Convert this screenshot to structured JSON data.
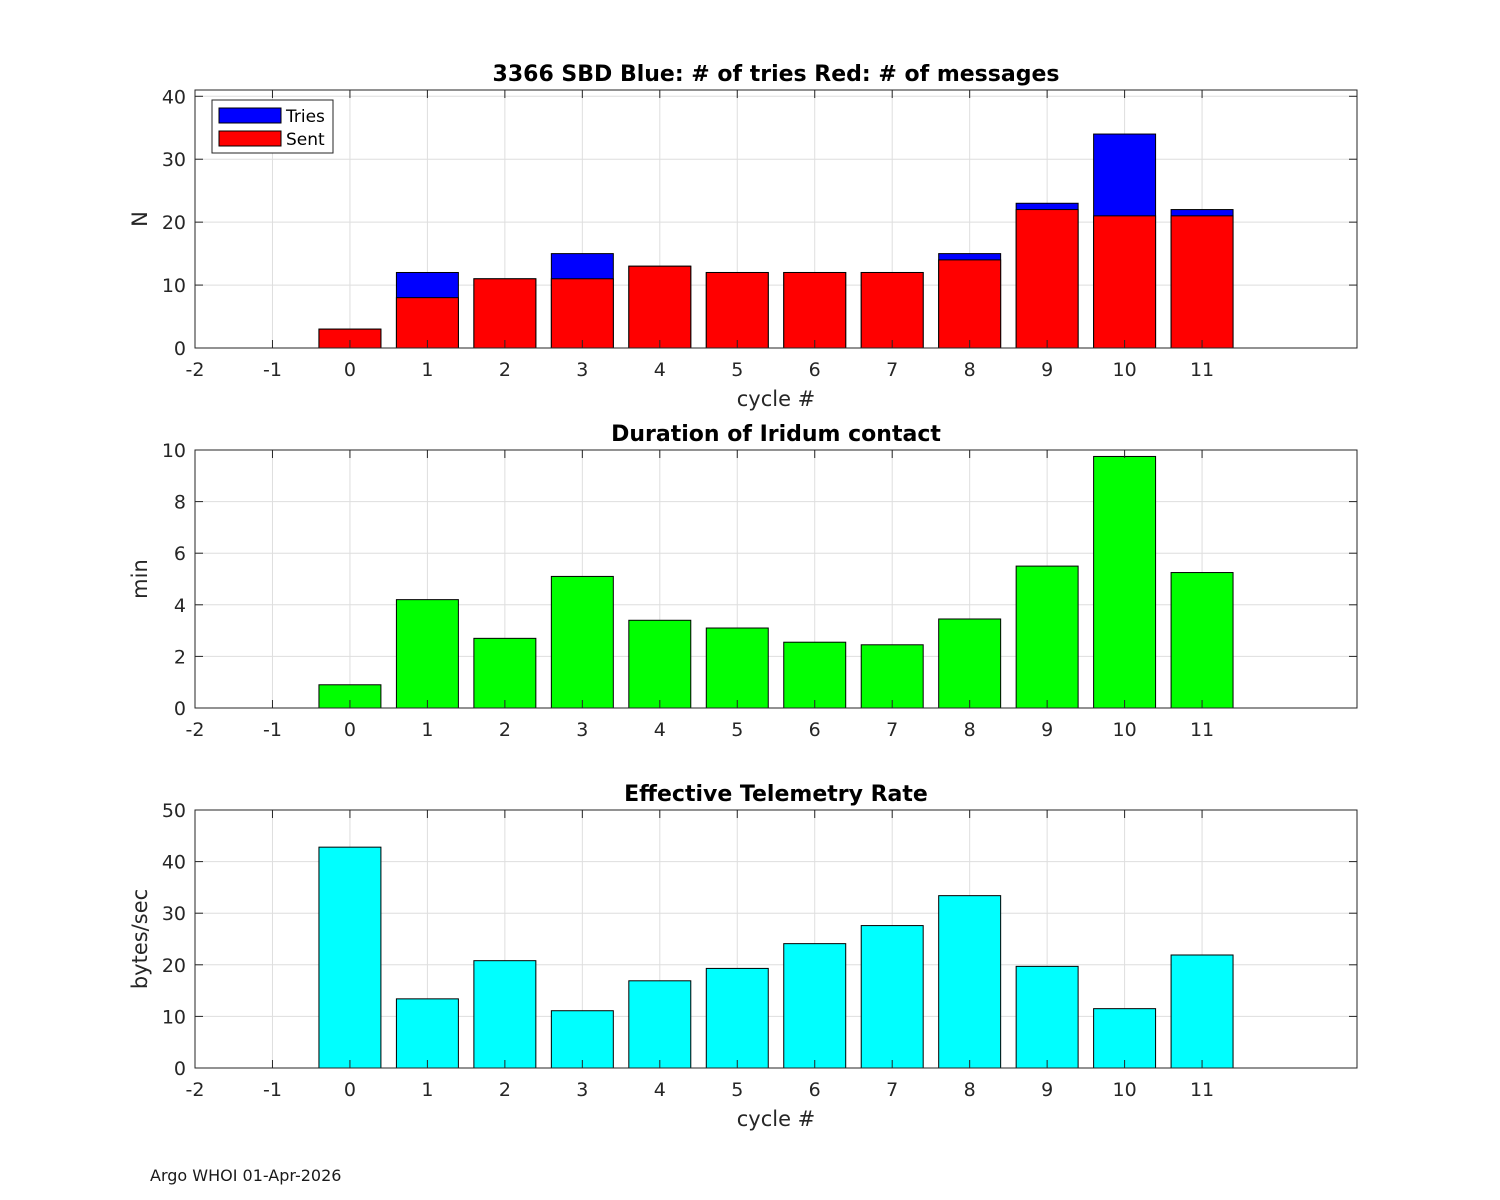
{
  "footer": "Argo WHOI 01-Apr-2026",
  "chart_data": [
    {
      "type": "bar",
      "stacked_overlay": true,
      "title": "3366 SBD  Blue: # of tries   Red: # of messages",
      "xlabel": "cycle #",
      "ylabel": "N",
      "x": [
        0,
        1,
        2,
        3,
        4,
        5,
        6,
        7,
        8,
        9,
        10,
        11
      ],
      "xlim": [
        -2,
        13
      ],
      "xticks": [
        "-2",
        "-1",
        "0",
        "1",
        "2",
        "3",
        "4",
        "5",
        "6",
        "7",
        "8",
        "9",
        "10",
        "11"
      ],
      "ylim": [
        0,
        41
      ],
      "yticks": [
        "0",
        "10",
        "20",
        "30",
        "40"
      ],
      "grid": true,
      "legend_position": "top-left",
      "series": [
        {
          "name": "Tries",
          "color": "#0000ff",
          "values": [
            3,
            12,
            11,
            15,
            13,
            12,
            12,
            12,
            15,
            23,
            34,
            22
          ]
        },
        {
          "name": "Sent",
          "color": "#ff0000",
          "values": [
            3,
            8,
            11,
            11,
            13,
            12,
            12,
            12,
            14,
            22,
            21,
            21
          ]
        }
      ]
    },
    {
      "type": "bar",
      "title": "Duration of Iridum contact",
      "xlabel": "",
      "ylabel": "min",
      "x": [
        0,
        1,
        2,
        3,
        4,
        5,
        6,
        7,
        8,
        9,
        10,
        11
      ],
      "xlim": [
        -2,
        13
      ],
      "xticks": [
        "-2",
        "-1",
        "0",
        "1",
        "2",
        "3",
        "4",
        "5",
        "6",
        "7",
        "8",
        "9",
        "10",
        "11"
      ],
      "ylim": [
        0,
        10
      ],
      "yticks": [
        "0",
        "2",
        "4",
        "6",
        "8",
        "10"
      ],
      "grid": true,
      "color": "#00ff00",
      "values": [
        0.9,
        4.2,
        2.7,
        5.1,
        3.4,
        3.1,
        2.55,
        2.45,
        3.45,
        5.5,
        9.75,
        5.25
      ]
    },
    {
      "type": "bar",
      "title": "Effective Telemetry Rate",
      "xlabel": "cycle #",
      "ylabel": "bytes/sec",
      "x": [
        0,
        1,
        2,
        3,
        4,
        5,
        6,
        7,
        8,
        9,
        10,
        11
      ],
      "xlim": [
        -2,
        13
      ],
      "xticks": [
        "-2",
        "-1",
        "0",
        "1",
        "2",
        "3",
        "4",
        "5",
        "6",
        "7",
        "8",
        "9",
        "10",
        "11"
      ],
      "ylim": [
        0,
        50
      ],
      "yticks": [
        "0",
        "10",
        "20",
        "30",
        "40",
        "50"
      ],
      "grid": true,
      "color": "#00ffff",
      "values": [
        42.8,
        13.4,
        20.8,
        11.1,
        16.9,
        19.3,
        24.1,
        27.6,
        33.4,
        19.7,
        11.5,
        21.9
      ]
    }
  ]
}
